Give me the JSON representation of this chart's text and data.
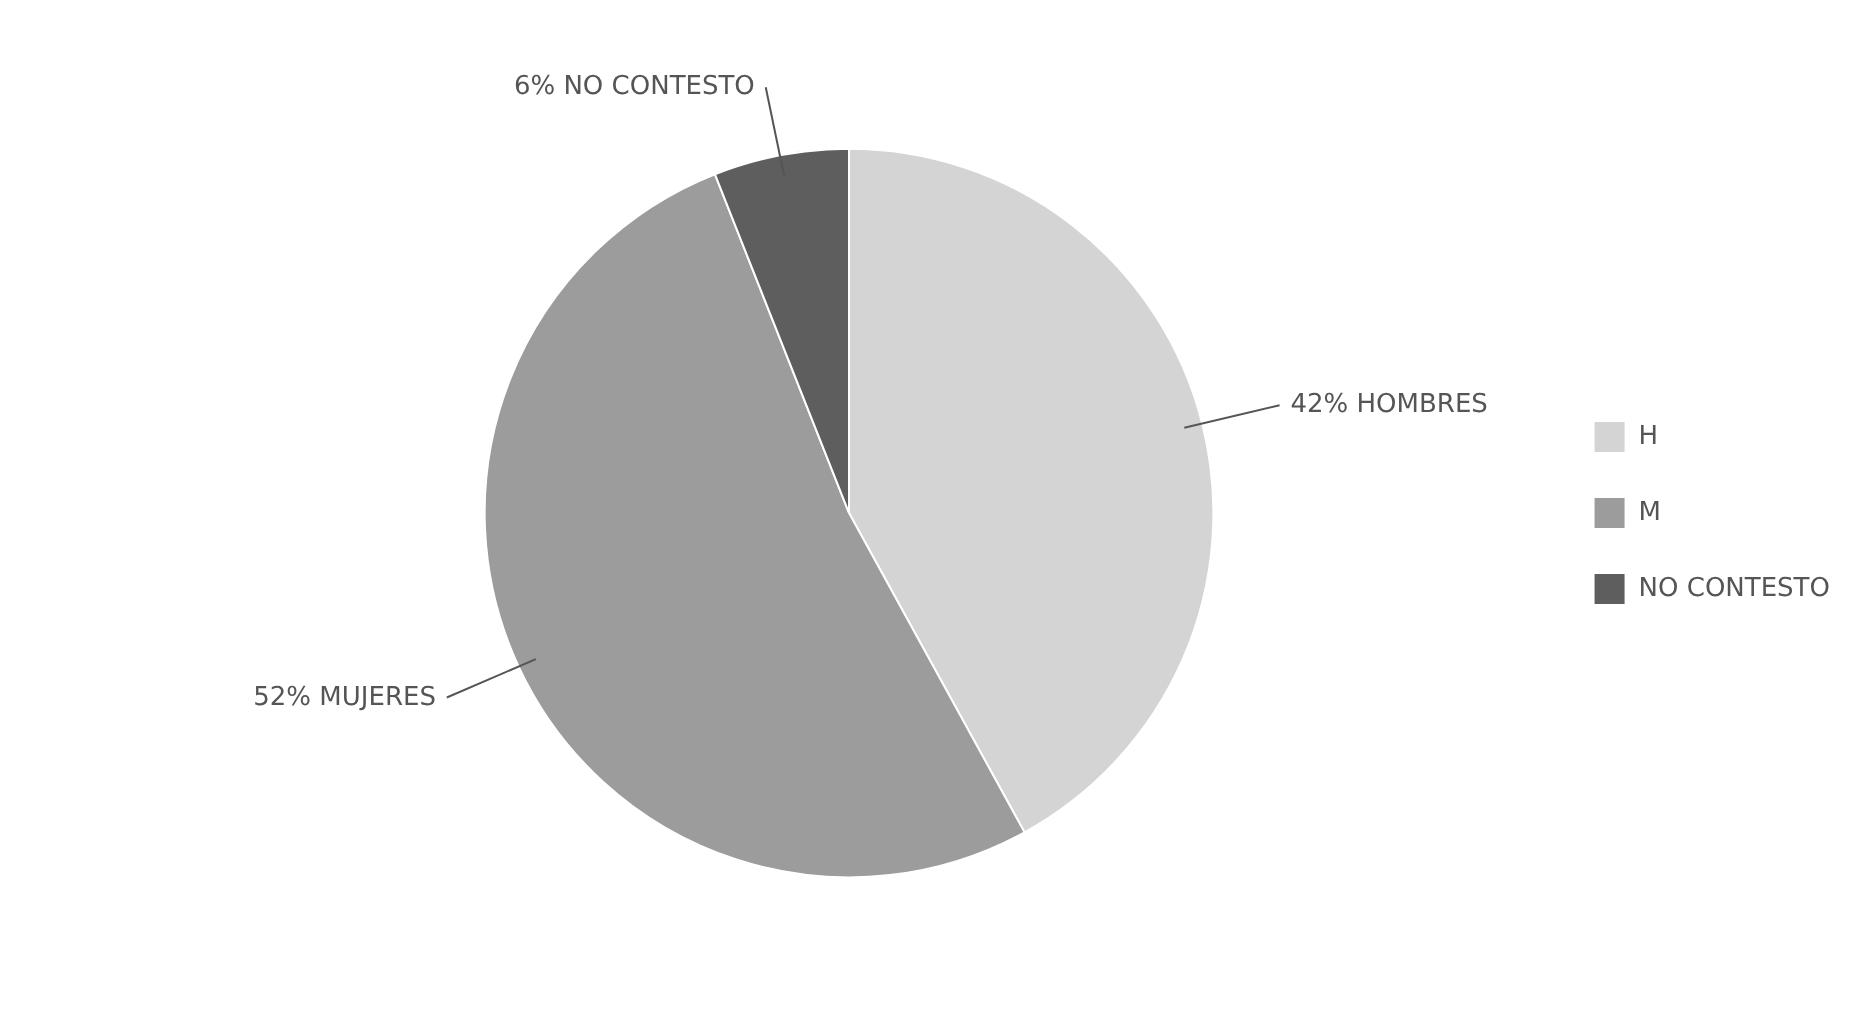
{
  "chart_data": {
    "type": "pie",
    "categories": [
      "H",
      "M",
      "NO CONTESTO"
    ],
    "values": [
      42,
      52,
      6
    ],
    "colors": [
      "#d4d4d4",
      "#9c9c9c",
      "#5e5e5e"
    ],
    "value_labels": [
      "42% HOMBRES",
      "52% MUJERES",
      "6% NO CONTESTO"
    ],
    "legend": "right"
  }
}
